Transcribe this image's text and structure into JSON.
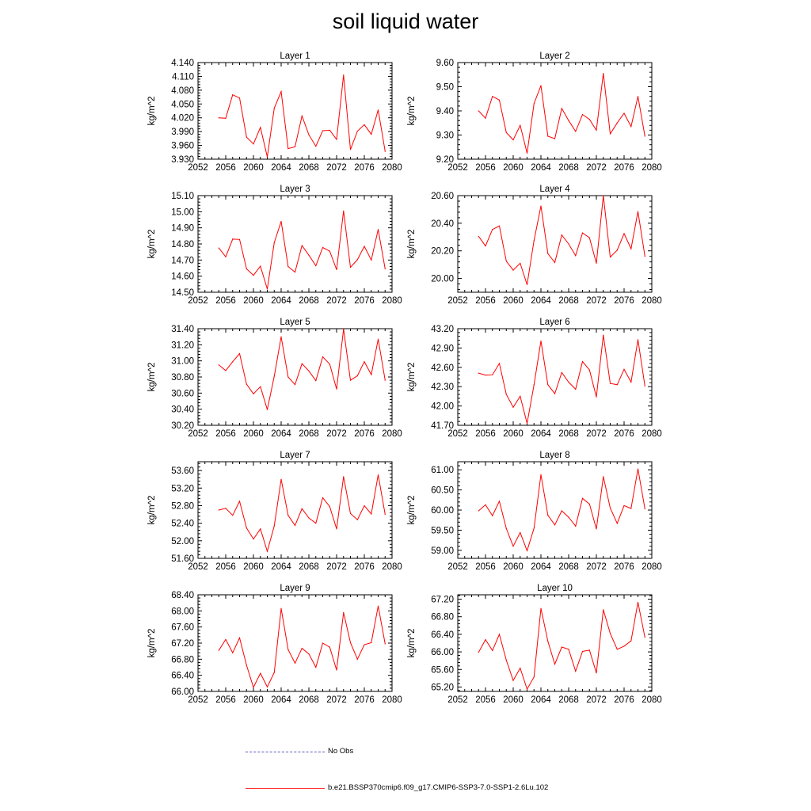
{
  "title": "soil liquid water",
  "legend": {
    "obs_label": "No Obs",
    "model_label": "b.e21.BSSP370cmip6.f09_g17.CMIP6-SSP3-7.0-SSP1-2.6Lu.102",
    "obs_color": "#5a5ac8",
    "model_color": "#ff0000"
  },
  "chart_data": [
    {
      "type": "line",
      "title": "Layer 1",
      "ylabel": "kg/m^2",
      "xlim": [
        2052,
        2080
      ],
      "ylim": [
        3.93,
        4.14
      ],
      "yticks": [
        "3.930",
        "3.960",
        "3.990",
        "4.020",
        "4.050",
        "4.080",
        "4.110",
        "4.140"
      ],
      "xticks": [
        "2052",
        "2056",
        "2060",
        "2064",
        "2068",
        "2072",
        "2076",
        "2080"
      ],
      "x": [
        2055,
        2056,
        2057,
        2058,
        2059,
        2060,
        2061,
        2062,
        2063,
        2064,
        2065,
        2066,
        2067,
        2068,
        2069,
        2070,
        2071,
        2072,
        2073,
        2074,
        2075,
        2076,
        2077,
        2078,
        2079
      ],
      "series": [
        {
          "values": [
            4.02,
            4.019,
            4.07,
            4.063,
            3.978,
            3.963,
            3.999,
            3.935,
            4.041,
            4.077,
            3.953,
            3.957,
            4.024,
            3.983,
            3.958,
            3.992,
            3.993,
            3.973,
            4.113,
            3.951,
            3.991,
            4.005,
            3.984,
            4.037,
            3.947
          ]
        }
      ]
    },
    {
      "type": "line",
      "title": "Layer 2",
      "ylabel": "kg/m^2",
      "xlim": [
        2052,
        2080
      ],
      "ylim": [
        9.2,
        9.6
      ],
      "yticks": [
        "9.20",
        "9.30",
        "9.40",
        "9.50",
        "9.60"
      ],
      "xticks": [
        "2052",
        "2056",
        "2060",
        "2064",
        "2068",
        "2072",
        "2076",
        "2080"
      ],
      "x": [
        2055,
        2056,
        2057,
        2058,
        2059,
        2060,
        2061,
        2062,
        2063,
        2064,
        2065,
        2066,
        2067,
        2068,
        2069,
        2070,
        2071,
        2072,
        2073,
        2074,
        2075,
        2076,
        2077,
        2078,
        2079
      ],
      "series": [
        {
          "values": [
            9.4,
            9.37,
            9.46,
            9.445,
            9.31,
            9.28,
            9.34,
            9.225,
            9.43,
            9.505,
            9.295,
            9.285,
            9.41,
            9.36,
            9.315,
            9.385,
            9.365,
            9.32,
            9.555,
            9.305,
            9.35,
            9.39,
            9.335,
            9.46,
            9.295
          ]
        }
      ]
    },
    {
      "type": "line",
      "title": "Layer 3",
      "ylabel": "kg/m^2",
      "xlim": [
        2052,
        2080
      ],
      "ylim": [
        14.5,
        15.1
      ],
      "yticks": [
        "14.50",
        "14.60",
        "14.70",
        "14.80",
        "14.90",
        "15.00",
        "15.10"
      ],
      "xticks": [
        "2052",
        "2056",
        "2060",
        "2064",
        "2068",
        "2072",
        "2076",
        "2080"
      ],
      "x": [
        2055,
        2056,
        2057,
        2058,
        2059,
        2060,
        2061,
        2062,
        2063,
        2064,
        2065,
        2066,
        2067,
        2068,
        2069,
        2070,
        2071,
        2072,
        2073,
        2074,
        2075,
        2076,
        2077,
        2078,
        2079
      ],
      "series": [
        {
          "values": [
            14.775,
            14.72,
            14.83,
            14.828,
            14.645,
            14.605,
            14.662,
            14.52,
            14.808,
            14.94,
            14.66,
            14.625,
            14.79,
            14.73,
            14.665,
            14.778,
            14.755,
            14.64,
            15.005,
            14.655,
            14.702,
            14.785,
            14.7,
            14.89,
            14.645
          ]
        }
      ]
    },
    {
      "type": "line",
      "title": "Layer 4",
      "ylabel": "kg/m^2",
      "xlim": [
        2052,
        2080
      ],
      "ylim": [
        19.9,
        20.6
      ],
      "yticks": [
        "20.00",
        "20.20",
        "20.40",
        "20.60"
      ],
      "xticks": [
        "2052",
        "2056",
        "2060",
        "2064",
        "2068",
        "2072",
        "2076",
        "2080"
      ],
      "x": [
        2055,
        2056,
        2057,
        2058,
        2059,
        2060,
        2061,
        2062,
        2063,
        2064,
        2065,
        2066,
        2067,
        2068,
        2069,
        2070,
        2071,
        2072,
        2073,
        2074,
        2075,
        2076,
        2077,
        2078,
        2079
      ],
      "series": [
        {
          "values": [
            20.305,
            20.235,
            20.355,
            20.38,
            20.125,
            20.06,
            20.11,
            19.955,
            20.275,
            20.525,
            20.18,
            20.115,
            20.315,
            20.25,
            20.165,
            20.33,
            20.295,
            20.11,
            20.6,
            20.155,
            20.205,
            20.325,
            20.215,
            20.485,
            20.16
          ]
        }
      ]
    },
    {
      "type": "line",
      "title": "Layer 5",
      "ylabel": "kg/m^2",
      "xlim": [
        2052,
        2080
      ],
      "ylim": [
        30.2,
        31.4
      ],
      "yticks": [
        "30.20",
        "30.40",
        "30.60",
        "30.80",
        "31.00",
        "31.20",
        "31.40"
      ],
      "xticks": [
        "2052",
        "2056",
        "2060",
        "2064",
        "2068",
        "2072",
        "2076",
        "2080"
      ],
      "x": [
        2055,
        2056,
        2057,
        2058,
        2059,
        2060,
        2061,
        2062,
        2063,
        2064,
        2065,
        2066,
        2067,
        2068,
        2069,
        2070,
        2071,
        2072,
        2073,
        2074,
        2075,
        2076,
        2077,
        2078,
        2079
      ],
      "series": [
        {
          "values": [
            30.95,
            30.88,
            30.99,
            31.09,
            30.71,
            30.59,
            30.68,
            30.395,
            30.81,
            31.3,
            30.8,
            30.705,
            30.965,
            30.875,
            30.755,
            31.05,
            30.96,
            30.65,
            31.395,
            30.76,
            30.815,
            30.99,
            30.83,
            31.27,
            30.76
          ]
        }
      ]
    },
    {
      "type": "line",
      "title": "Layer 6",
      "ylabel": "kg/m^2",
      "xlim": [
        2052,
        2080
      ],
      "ylim": [
        41.7,
        43.2
      ],
      "yticks": [
        "41.70",
        "42.00",
        "42.30",
        "42.60",
        "42.90",
        "43.20"
      ],
      "xticks": [
        "2052",
        "2056",
        "2060",
        "2064",
        "2068",
        "2072",
        "2076",
        "2080"
      ],
      "x": [
        2055,
        2056,
        2057,
        2058,
        2059,
        2060,
        2061,
        2062,
        2063,
        2064,
        2065,
        2066,
        2067,
        2068,
        2069,
        2070,
        2071,
        2072,
        2073,
        2074,
        2075,
        2076,
        2077,
        2078,
        2079
      ],
      "series": [
        {
          "values": [
            42.51,
            42.48,
            42.485,
            42.66,
            42.18,
            41.98,
            42.15,
            41.73,
            42.33,
            43.01,
            42.33,
            42.19,
            42.52,
            42.37,
            42.26,
            42.69,
            42.56,
            42.14,
            43.1,
            42.35,
            42.33,
            42.57,
            42.37,
            43.03,
            42.31
          ]
        }
      ]
    },
    {
      "type": "line",
      "title": "Layer 7",
      "ylabel": "kg/m^2",
      "xlim": [
        2052,
        2080
      ],
      "ylim": [
        51.6,
        53.8
      ],
      "yticks": [
        "51.60",
        "52.00",
        "52.40",
        "52.80",
        "53.20",
        "53.60"
      ],
      "xticks": [
        "2052",
        "2056",
        "2060",
        "2064",
        "2068",
        "2072",
        "2076",
        "2080"
      ],
      "x": [
        2055,
        2056,
        2057,
        2058,
        2059,
        2060,
        2061,
        2062,
        2063,
        2064,
        2065,
        2066,
        2067,
        2068,
        2069,
        2070,
        2071,
        2072,
        2073,
        2074,
        2075,
        2076,
        2077,
        2078,
        2079
      ],
      "series": [
        {
          "values": [
            52.7,
            52.74,
            52.58,
            52.9,
            52.29,
            52.04,
            52.27,
            51.76,
            52.34,
            53.4,
            52.58,
            52.35,
            52.73,
            52.52,
            52.4,
            52.98,
            52.78,
            52.27,
            53.46,
            52.62,
            52.48,
            52.8,
            52.61,
            53.5,
            52.6
          ]
        }
      ]
    },
    {
      "type": "line",
      "title": "Layer 8",
      "ylabel": "kg/m^2",
      "xlim": [
        2052,
        2080
      ],
      "ylim": [
        58.8,
        61.2
      ],
      "yticks": [
        "59.00",
        "59.50",
        "60.00",
        "60.50",
        "61.00"
      ],
      "xticks": [
        "2052",
        "2056",
        "2060",
        "2064",
        "2068",
        "2072",
        "2076",
        "2080"
      ],
      "x": [
        2055,
        2056,
        2057,
        2058,
        2059,
        2060,
        2061,
        2062,
        2063,
        2064,
        2065,
        2066,
        2067,
        2068,
        2069,
        2070,
        2071,
        2072,
        2073,
        2074,
        2075,
        2076,
        2077,
        2078,
        2079
      ],
      "series": [
        {
          "values": [
            59.98,
            60.13,
            59.86,
            60.22,
            59.54,
            59.1,
            59.44,
            58.99,
            59.55,
            60.88,
            59.87,
            59.63,
            59.98,
            59.82,
            59.6,
            60.29,
            60.15,
            59.53,
            60.83,
            60.05,
            59.67,
            60.11,
            60.04,
            61.02,
            60.03
          ]
        }
      ]
    },
    {
      "type": "line",
      "title": "Layer 9",
      "ylabel": "kg/m^2",
      "xlim": [
        2052,
        2080
      ],
      "ylim": [
        66.0,
        68.4
      ],
      "yticks": [
        "66.00",
        "66.40",
        "66.80",
        "67.20",
        "67.60",
        "68.00",
        "68.40"
      ],
      "xticks": [
        "2052",
        "2056",
        "2060",
        "2064",
        "2068",
        "2072",
        "2076",
        "2080"
      ],
      "x": [
        2055,
        2056,
        2057,
        2058,
        2059,
        2060,
        2061,
        2062,
        2063,
        2064,
        2065,
        2066,
        2067,
        2068,
        2069,
        2070,
        2071,
        2072,
        2073,
        2074,
        2075,
        2076,
        2077,
        2078,
        2079
      ],
      "series": [
        {
          "values": [
            67.02,
            67.29,
            66.96,
            67.33,
            66.65,
            66.1,
            66.45,
            66.11,
            66.47,
            68.06,
            67.04,
            66.7,
            67.07,
            66.93,
            66.6,
            67.2,
            67.1,
            66.53,
            67.96,
            67.21,
            66.8,
            67.16,
            67.21,
            68.12,
            67.18
          ]
        }
      ]
    },
    {
      "type": "line",
      "title": "Layer 10",
      "ylabel": "kg/m^2",
      "xlim": [
        2052,
        2080
      ],
      "ylim": [
        65.1,
        67.3
      ],
      "yticks": [
        "65.20",
        "65.60",
        "66.00",
        "66.40",
        "66.80",
        "67.20"
      ],
      "xticks": [
        "2052",
        "2056",
        "2060",
        "2064",
        "2068",
        "2072",
        "2076",
        "2080"
      ],
      "x": [
        2055,
        2056,
        2057,
        2058,
        2059,
        2060,
        2061,
        2062,
        2063,
        2064,
        2065,
        2066,
        2067,
        2068,
        2069,
        2070,
        2071,
        2072,
        2073,
        2074,
        2075,
        2076,
        2077,
        2078,
        2079
      ],
      "series": [
        {
          "values": [
            65.99,
            66.28,
            66.03,
            66.4,
            65.81,
            65.35,
            65.63,
            65.15,
            65.43,
            66.99,
            66.24,
            65.72,
            66.11,
            66.06,
            65.56,
            66.01,
            66.04,
            65.52,
            66.96,
            66.42,
            66.06,
            66.13,
            66.25,
            67.13,
            66.33
          ]
        }
      ]
    }
  ]
}
